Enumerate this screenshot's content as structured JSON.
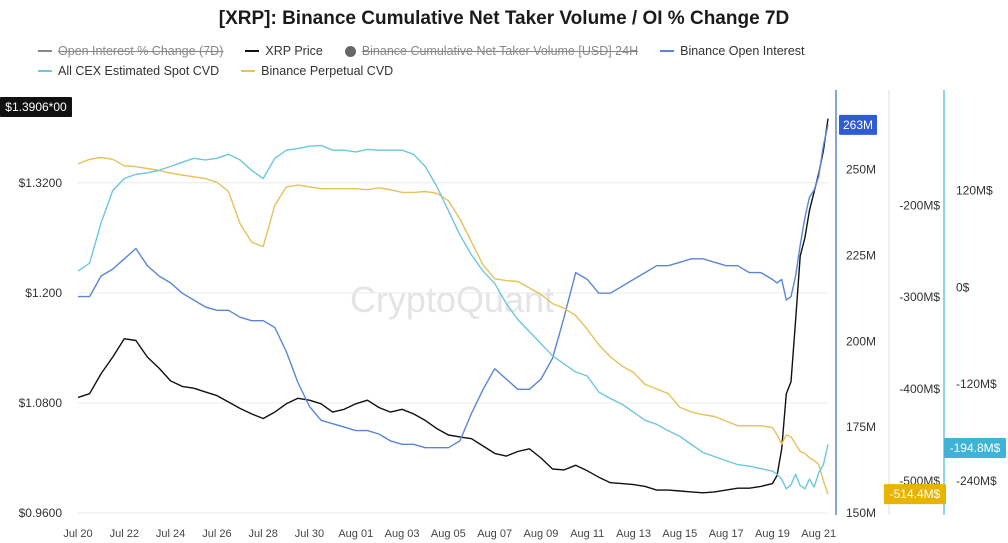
{
  "chart_data": {
    "type": "line",
    "title": "[XRP]: Binance Cumulative Net Taker Volume / OI % Change 7D",
    "watermark": "CryptoQuant",
    "legend_placement": "top-left",
    "legend": [
      {
        "name": "Open Interest % Change (7D)",
        "color": "#888888",
        "enabled": false,
        "marker": "line"
      },
      {
        "name": "XRP Price",
        "color": "#111111",
        "enabled": true,
        "marker": "line"
      },
      {
        "name": "Binance Cumulative Net Taker Volume [USD] 24H",
        "color": "#666666",
        "enabled": false,
        "marker": "dot"
      },
      {
        "name": "Binance Open Interest",
        "color": "#5b86d6",
        "enabled": true,
        "marker": "line"
      },
      {
        "name": "All CEX Estimated Spot CVD",
        "color": "#6cc7df",
        "enabled": true,
        "marker": "line"
      },
      {
        "name": "Binance Perpetual CVD",
        "color": "#e5c25c",
        "enabled": true,
        "marker": "line"
      }
    ],
    "x_ticks": [
      "Jul 20",
      "Jul 22",
      "Jul 24",
      "Jul 26",
      "Jul 28",
      "Jul 30",
      "Aug 01",
      "Aug 03",
      "Aug 05",
      "Aug 07",
      "Aug 09",
      "Aug 11",
      "Aug 13",
      "Aug 15",
      "Aug 17",
      "Aug 19",
      "Aug 21"
    ],
    "x_range": [
      0,
      32.4
    ],
    "axes": {
      "price": {
        "side": "left",
        "ticks": [
          "$0.9600",
          "$1.0800",
          "$1.200",
          "$1.3200"
        ],
        "tick_values": [
          0.96,
          1.08,
          1.2,
          1.32
        ],
        "range": [
          0.96,
          1.3906
        ],
        "current_label": "$1.3906*00"
      },
      "oi": {
        "side": "right-1",
        "ticks": [
          "150M",
          "175M",
          "200M",
          "225M",
          "250M"
        ],
        "tick_values": [
          150,
          175,
          200,
          225,
          250
        ],
        "range": [
          150,
          265
        ],
        "current_label": "263M",
        "color": "#5b86d6"
      },
      "perp_cvd": {
        "side": "right-2",
        "ticks": [
          "-500M$",
          "-400M$",
          "-300M$",
          "-200M$"
        ],
        "tick_values": [
          -500,
          -400,
          -300,
          -200
        ],
        "range": [
          -535,
          -105
        ],
        "current_label": "-514.4M$",
        "color": "#e5c25c"
      },
      "spot_cvd": {
        "side": "right-3",
        "ticks": [
          "-240M$",
          "-120M$",
          "0$",
          "120M$"
        ],
        "tick_values": [
          -240,
          -120,
          0,
          120
        ],
        "range": [
          -280,
          210
        ],
        "current_label": "-194.8M$",
        "color": "#6cc7df"
      }
    },
    "series": [
      {
        "name": "XRP Price",
        "axis": "price",
        "color": "#111111",
        "x": [
          0,
          0.5,
          1,
          1.5,
          2,
          2.5,
          3,
          3.5,
          4,
          4.5,
          5,
          5.5,
          6,
          6.5,
          7,
          7.5,
          8,
          8.5,
          9,
          9.5,
          10,
          10.5,
          11,
          11.5,
          12,
          12.5,
          13,
          13.5,
          14,
          14.5,
          15,
          15.5,
          16,
          16.5,
          17,
          17.5,
          18,
          18.5,
          19,
          19.5,
          20,
          20.5,
          21,
          21.5,
          22,
          22.5,
          23,
          23.5,
          24,
          24.5,
          25,
          25.5,
          26,
          26.5,
          27,
          27.5,
          28,
          28.5,
          29,
          29.5,
          30,
          30.2,
          30.4,
          30.6,
          30.8,
          31,
          31.2,
          31.4,
          31.6,
          31.8,
          32,
          32.2,
          32.4
        ],
        "y": [
          1.086,
          1.09,
          1.112,
          1.13,
          1.15,
          1.148,
          1.13,
          1.118,
          1.104,
          1.098,
          1.096,
          1.092,
          1.088,
          1.081,
          1.074,
          1.068,
          1.063,
          1.07,
          1.079,
          1.085,
          1.083,
          1.079,
          1.07,
          1.073,
          1.079,
          1.083,
          1.075,
          1.07,
          1.073,
          1.068,
          1.061,
          1.052,
          1.045,
          1.043,
          1.041,
          1.033,
          1.025,
          1.022,
          1.027,
          1.03,
          1.02,
          1.008,
          1.007,
          1.012,
          1.006,
          0.999,
          0.993,
          0.992,
          0.991,
          0.989,
          0.985,
          0.985,
          0.984,
          0.983,
          0.982,
          0.983,
          0.985,
          0.987,
          0.987,
          0.989,
          0.992,
          1.001,
          1.03,
          1.09,
          1.103,
          1.17,
          1.24,
          1.26,
          1.29,
          1.31,
          1.33,
          1.355,
          1.39
        ]
      },
      {
        "name": "Binance Open Interest",
        "axis": "oi",
        "color": "#5b86d6",
        "x": [
          0,
          0.5,
          1,
          1.5,
          2,
          2.5,
          3,
          3.5,
          4,
          4.5,
          5,
          5.5,
          6,
          6.5,
          7,
          7.5,
          8,
          8.5,
          9,
          9.5,
          10,
          10.5,
          11,
          11.5,
          12,
          12.5,
          13,
          13.5,
          14,
          14.5,
          15,
          15.5,
          16,
          16.5,
          17,
          17.5,
          18,
          18.5,
          19,
          19.5,
          20,
          20.5,
          21,
          21.5,
          22,
          22.5,
          23,
          23.5,
          24,
          24.5,
          25,
          25.5,
          26,
          26.5,
          27,
          27.5,
          28,
          28.5,
          29,
          29.5,
          30,
          30.2,
          30.4,
          30.6,
          30.8,
          31,
          31.2,
          31.4,
          31.6,
          31.8,
          32,
          32.2,
          32.4
        ],
        "y": [
          213,
          213,
          219,
          221,
          224,
          227,
          222,
          219,
          217,
          214,
          212,
          210,
          209,
          209,
          207,
          206,
          206,
          204,
          197,
          188,
          181,
          177,
          176,
          175,
          174,
          174,
          173,
          171,
          170,
          170,
          169,
          169,
          169,
          171,
          179,
          186,
          192,
          189,
          186,
          186,
          189,
          195,
          207,
          220,
          218,
          214,
          214,
          216,
          218,
          220,
          222,
          222,
          223,
          224,
          224,
          223,
          222,
          222,
          220,
          220,
          218,
          217,
          218,
          212,
          213,
          219,
          228,
          236,
          242,
          244,
          248,
          257,
          263
        ]
      },
      {
        "name": "Binance Perpetual CVD",
        "axis": "perp_cvd",
        "color": "#e5c25c",
        "x": [
          0,
          0.5,
          1,
          1.5,
          2,
          2.5,
          3,
          3.5,
          4,
          4.5,
          5,
          5.5,
          6,
          6.5,
          7,
          7.5,
          8,
          8.5,
          9,
          9.5,
          10,
          10.5,
          11,
          11.5,
          12,
          12.5,
          13,
          13.5,
          14,
          14.5,
          15,
          15.5,
          16,
          16.5,
          17,
          17.5,
          18,
          18.5,
          19,
          19.5,
          20,
          20.5,
          21,
          21.5,
          22,
          22.5,
          23,
          23.5,
          24,
          24.5,
          25,
          25.5,
          26,
          26.5,
          27,
          27.5,
          28,
          28.5,
          29,
          29.5,
          30,
          30.2,
          30.4,
          30.6,
          30.8,
          31,
          31.2,
          31.4,
          31.6,
          31.8,
          32,
          32.2,
          32.4
        ],
        "y": [
          -155,
          -150,
          -148,
          -150,
          -157,
          -158,
          -160,
          -162,
          -165,
          -167,
          -169,
          -171,
          -175,
          -185,
          -220,
          -240,
          -245,
          -200,
          -180,
          -178,
          -180,
          -182,
          -182,
          -182,
          -182,
          -183,
          -181,
          -183,
          -186,
          -186,
          -185,
          -187,
          -195,
          -215,
          -240,
          -265,
          -280,
          -282,
          -283,
          -290,
          -297,
          -307,
          -312,
          -320,
          -335,
          -352,
          -365,
          -375,
          -382,
          -395,
          -400,
          -405,
          -420,
          -425,
          -428,
          -430,
          -435,
          -440,
          -440,
          -440,
          -442,
          -450,
          -460,
          -450,
          -452,
          -460,
          -468,
          -470,
          -475,
          -478,
          -482,
          -500,
          -514.4
        ]
      },
      {
        "name": "All CEX Estimated Spot CVD",
        "axis": "spot_cvd",
        "color": "#6cc7df",
        "x": [
          0,
          0.5,
          1,
          1.5,
          2,
          2.5,
          3,
          3.5,
          4,
          4.5,
          5,
          5.5,
          6,
          6.5,
          7,
          7.5,
          8,
          8.5,
          9,
          9.5,
          10,
          10.5,
          11,
          11.5,
          12,
          12.5,
          13,
          13.5,
          14,
          14.5,
          15,
          15.5,
          16,
          16.5,
          17,
          17.5,
          18,
          18.5,
          19,
          19.5,
          20,
          20.5,
          21,
          21.5,
          22,
          22.5,
          23,
          23.5,
          24,
          24.5,
          25,
          25.5,
          26,
          26.5,
          27,
          27.5,
          28,
          28.5,
          29,
          29.5,
          30,
          30.2,
          30.4,
          30.6,
          30.8,
          31,
          31.2,
          31.4,
          31.6,
          31.8,
          32,
          32.2,
          32.4
        ],
        "y": [
          20,
          30,
          80,
          120,
          135,
          140,
          142,
          145,
          150,
          155,
          160,
          158,
          160,
          165,
          158,
          145,
          135,
          160,
          170,
          172,
          175,
          176,
          170,
          170,
          168,
          171,
          170,
          170,
          170,
          165,
          150,
          125,
          95,
          65,
          40,
          20,
          5,
          -20,
          -40,
          -55,
          -70,
          -85,
          -95,
          -105,
          -110,
          -130,
          -138,
          -145,
          -155,
          -165,
          -170,
          -178,
          -185,
          -195,
          -205,
          -210,
          -215,
          -220,
          -222,
          -225,
          -228,
          -232,
          -238,
          -250,
          -245,
          -232,
          -246,
          -250,
          -238,
          -248,
          -230,
          -220,
          -194.8
        ]
      }
    ]
  }
}
